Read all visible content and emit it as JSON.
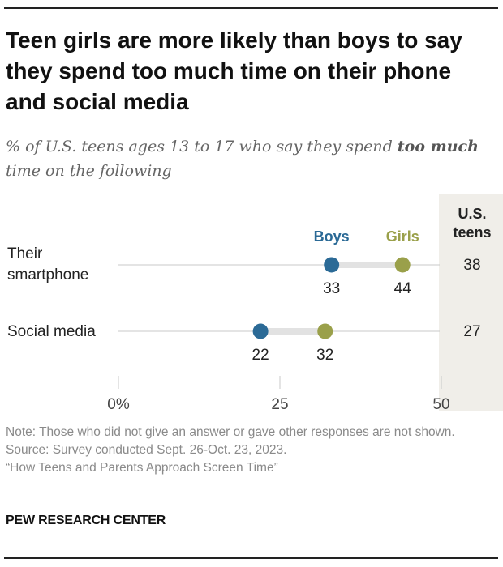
{
  "title": "Teen girls are more likely than boys to say they spend too much time on their phone and social media",
  "subtitle": {
    "pre": "% of U.S. teens ages 13 to 17 who say they spend ",
    "bold": "too much",
    "post": " time on the following"
  },
  "chart_data": {
    "type": "dot",
    "categories": [
      "Their smartphone",
      "Social media"
    ],
    "category_lines": [
      [
        "Their",
        "smartphone"
      ],
      [
        "Social media"
      ]
    ],
    "series": [
      {
        "name": "Boys",
        "values": [
          33,
          22
        ],
        "color": "#2b6a96"
      },
      {
        "name": "Girls",
        "values": [
          44,
          32
        ],
        "color": "#9aa04a"
      }
    ],
    "total": {
      "name_lines": [
        "U.S.",
        "teens"
      ],
      "values": [
        38,
        27
      ]
    },
    "xlim": [
      0,
      50
    ],
    "x_ticks": [
      0,
      25,
      50
    ],
    "x_tick_labels": [
      "0%",
      "25",
      "50"
    ],
    "legend": "top"
  },
  "notes": {
    "note": "Note: Those who did not give an answer or gave other responses are not shown.",
    "source": "Source: Survey conducted Sept. 26-Oct. 23, 2023.",
    "report": "“How Teens and Parents Approach Screen Time”"
  },
  "footer": "PEW RESEARCH CENTER",
  "colors": {
    "boys": "#2b6a96",
    "girls": "#9aa04a",
    "connector": "#e2e2e2",
    "total_column_bg": "#f0eee9"
  }
}
